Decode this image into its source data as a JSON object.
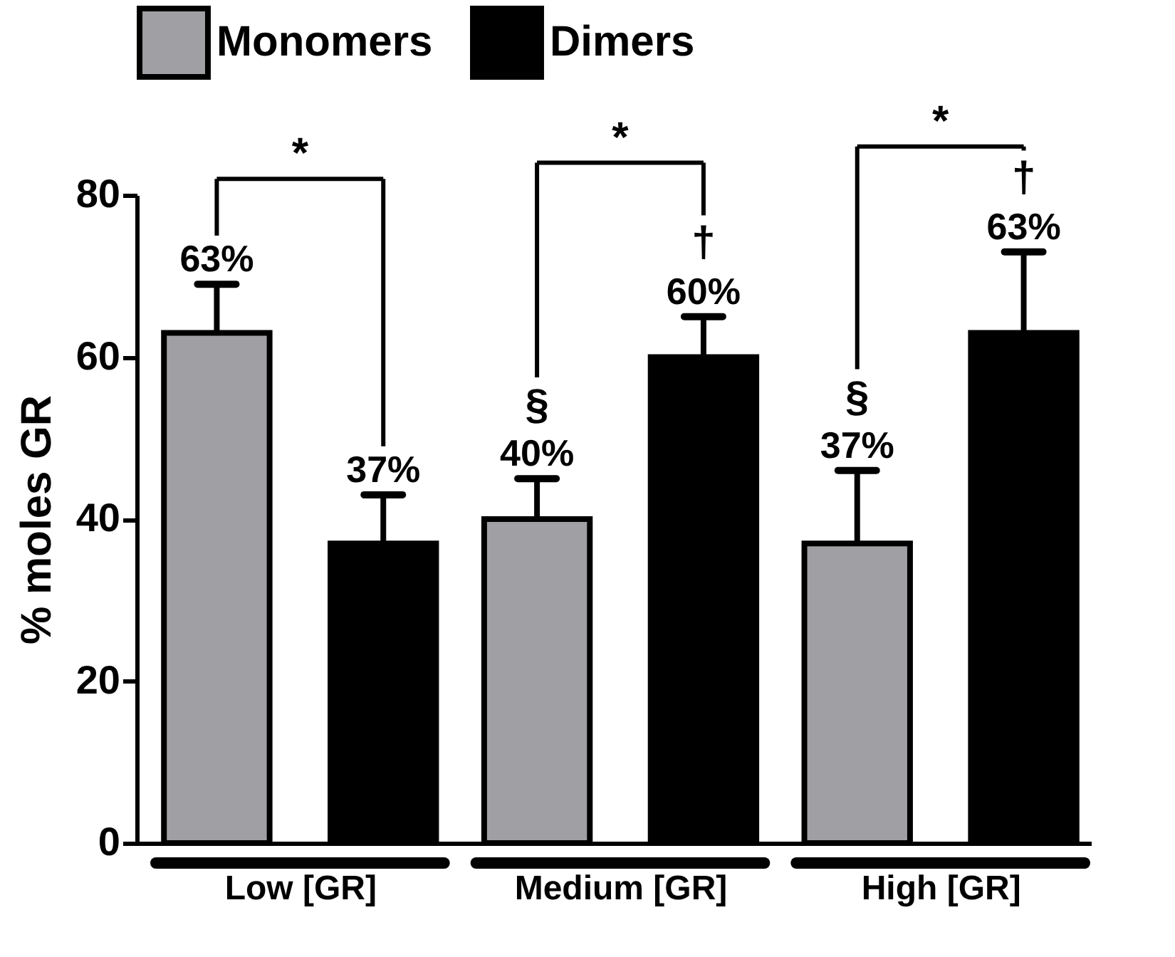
{
  "chart_data": {
    "type": "bar",
    "categories": [
      "Low [GR]",
      "Medium [GR]",
      "High [GR]"
    ],
    "ylabel": "% moles GR",
    "ylim": [
      0,
      80
    ],
    "yticks": [
      0,
      20,
      40,
      60,
      80
    ],
    "grid": false,
    "legend": "top",
    "series": [
      {
        "name": "Monomers",
        "color": "#a0a0a4",
        "values": [
          63,
          40,
          37
        ],
        "errors": [
          6,
          5,
          9
        ],
        "value_labels": [
          "63%",
          "40%",
          "37%"
        ]
      },
      {
        "name": "Dimers",
        "color": "#000000",
        "values": [
          37,
          60,
          63
        ],
        "errors": [
          6,
          5,
          10
        ],
        "value_labels": [
          "37%",
          "60%",
          "63%"
        ]
      }
    ],
    "annotations": [
      "*",
      "*",
      "*",
      "§",
      "§",
      "†",
      "†"
    ]
  }
}
